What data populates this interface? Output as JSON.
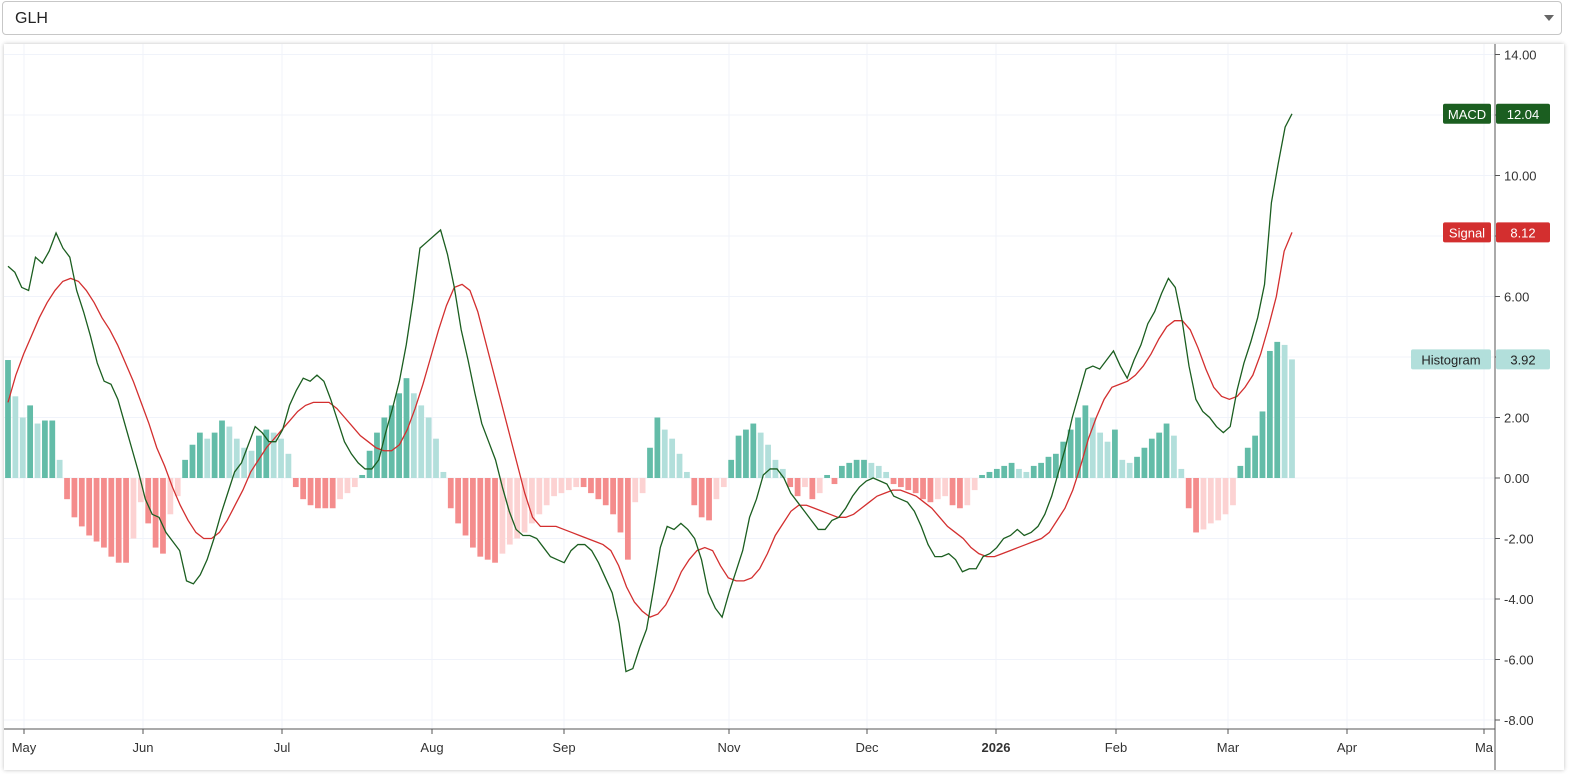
{
  "symbol_select": {
    "value": "GLH",
    "icon": "chevron-down-icon"
  },
  "chart_data": {
    "type": "line",
    "title": "",
    "xlabel": "",
    "ylabel": "",
    "ylim": [
      -8.5,
      14.3
    ],
    "grid": true,
    "legend": "right-axis-labels",
    "x_ticks": [
      "May",
      "Jun",
      "Jul",
      "Aug",
      "Sep",
      "Nov",
      "Dec",
      "2026",
      "Feb",
      "Mar",
      "Apr",
      "Ma"
    ],
    "y_ticks": [
      "14.00",
      "12.00",
      "10.00",
      "8.00",
      "6.00",
      "4.00",
      "2.00",
      "0.00",
      "-2.00",
      "-4.00",
      "-6.00",
      "-8.00"
    ],
    "colors": {
      "macd": "#1b5e20",
      "signal": "#d32f2f",
      "hist_pos_strong": "#63bca8",
      "hist_pos_weak": "#b2dfdb",
      "hist_neg_strong": "#f48c8c",
      "hist_neg_weak": "#fcd2d2",
      "grid": "#f0f3fa",
      "axis_text": "#333333"
    },
    "series": [
      {
        "name": "MACD",
        "last_value": "12.04",
        "values": [
          7,
          6.8,
          6.3,
          6.2,
          7.3,
          7.1,
          7.5,
          8.1,
          7.6,
          7.3,
          6.2,
          5.5,
          4.7,
          3.8,
          3.2,
          3.1,
          2.6,
          1.8,
          1.0,
          0.2,
          -0.7,
          -1.2,
          -1.3,
          -1.8,
          -2.1,
          -2.4,
          -3.4,
          -3.5,
          -3.2,
          -2.7,
          -2.0,
          -1.2,
          -0.5,
          0.2,
          0.5,
          1.1,
          1.7,
          1.5,
          1.2,
          1.2,
          1.6,
          2.4,
          2.9,
          3.3,
          3.2,
          3.4,
          3.2,
          2.6,
          1.9,
          1.2,
          0.8,
          0.5,
          0.3,
          0.3,
          0.6,
          1.5,
          2.3,
          3.2,
          4.4,
          5.9,
          7.6,
          7.8,
          8.0,
          8.2,
          7.4,
          6.3,
          4.9,
          3.9,
          2.8,
          1.8,
          1.2,
          0.6,
          -0.3,
          -1.1,
          -1.7,
          -1.9,
          -1.9,
          -2.0,
          -2.3,
          -2.6,
          -2.7,
          -2.8,
          -2.4,
          -2.2,
          -2.2,
          -2.4,
          -2.8,
          -3.3,
          -3.8,
          -4.8,
          -6.4,
          -6.3,
          -5.6,
          -5.0,
          -3.7,
          -2.3,
          -1.6,
          -1.7,
          -1.5,
          -1.7,
          -2.0,
          -2.7,
          -3.8,
          -4.3,
          -4.6,
          -3.8,
          -3.1,
          -2.4,
          -1.3,
          -0.7,
          0.1,
          0.3,
          0.3,
          0.0,
          -0.5,
          -0.8,
          -1.1,
          -1.4,
          -1.7,
          -1.7,
          -1.4,
          -1.3,
          -1.0,
          -0.6,
          -0.3,
          -0.1,
          0.0,
          -0.1,
          -0.2,
          -0.6,
          -0.7,
          -0.8,
          -1.1,
          -1.6,
          -2.2,
          -2.6,
          -2.6,
          -2.5,
          -2.7,
          -3.1,
          -3.0,
          -3.0,
          -2.6,
          -2.5,
          -2.3,
          -2.0,
          -1.9,
          -1.7,
          -1.9,
          -1.8,
          -1.6,
          -1.2,
          -0.6,
          0.2,
          1.0,
          2.0,
          2.8,
          3.6,
          3.7,
          3.6,
          3.9,
          4.2,
          3.7,
          3.3,
          3.9,
          4.4,
          5.1,
          5.5,
          6.1,
          6.6,
          6.3,
          5.2,
          3.7,
          2.6,
          2.2,
          2.0,
          1.7,
          1.5,
          1.7,
          2.9,
          3.8,
          4.5,
          5.3,
          6.4,
          9.1,
          10.4,
          11.6,
          12.04
        ]
      },
      {
        "name": "Signal",
        "last_value": "8.12",
        "values": [
          2.5,
          3.4,
          4.1,
          4.7,
          5.3,
          5.8,
          6.2,
          6.5,
          6.6,
          6.5,
          6.2,
          5.8,
          5.3,
          4.9,
          4.4,
          3.8,
          3.2,
          2.5,
          1.8,
          1.0,
          0.4,
          -0.3,
          -0.9,
          -1.4,
          -1.8,
          -2.0,
          -2.0,
          -1.8,
          -1.4,
          -0.9,
          -0.4,
          0.2,
          0.6,
          1.0,
          1.3,
          1.6,
          1.9,
          2.2,
          2.4,
          2.5,
          2.5,
          2.5,
          2.3,
          2.0,
          1.7,
          1.4,
          1.2,
          1.0,
          0.9,
          0.9,
          1.1,
          1.6,
          2.3,
          3.1,
          4.0,
          4.9,
          5.7,
          6.3,
          6.4,
          6.2,
          5.5,
          4.5,
          3.5,
          2.5,
          1.5,
          0.5,
          -0.5,
          -1.3,
          -1.6,
          -1.6,
          -1.6,
          -1.7,
          -1.8,
          -1.9,
          -2.0,
          -2.1,
          -2.2,
          -2.4,
          -2.9,
          -3.6,
          -4.1,
          -4.4,
          -4.6,
          -4.5,
          -4.2,
          -3.7,
          -3.1,
          -2.7,
          -2.4,
          -2.3,
          -2.4,
          -2.9,
          -3.3,
          -3.4,
          -3.4,
          -3.3,
          -3.0,
          -2.5,
          -1.9,
          -1.5,
          -1.1,
          -0.9,
          -0.9,
          -1.0,
          -1.1,
          -1.2,
          -1.3,
          -1.3,
          -1.2,
          -1.0,
          -0.8,
          -0.6,
          -0.5,
          -0.4,
          -0.4,
          -0.5,
          -0.6,
          -0.8,
          -1.0,
          -1.3,
          -1.6,
          -1.8,
          -2.0,
          -2.3,
          -2.5,
          -2.6,
          -2.6,
          -2.5,
          -2.4,
          -2.3,
          -2.2,
          -2.1,
          -2.0,
          -1.8,
          -1.4,
          -1.0,
          -0.4,
          0.4,
          1.3,
          2.0,
          2.6,
          3.0,
          3.1,
          3.2,
          3.4,
          3.7,
          4.1,
          4.6,
          5.0,
          5.2,
          5.2,
          4.9,
          4.3,
          3.6,
          3.0,
          2.7,
          2.6,
          2.7,
          3.0,
          3.4,
          4.1,
          5.0,
          6.0,
          7.5,
          8.12
        ]
      },
      {
        "name": "Histogram",
        "last_value": "3.92",
        "values": [
          3.9,
          2.7,
          2.0,
          2.4,
          1.8,
          1.9,
          1.9,
          0.6,
          -0.7,
          -1.3,
          -1.6,
          -1.9,
          -2.1,
          -2.3,
          -2.6,
          -2.8,
          -2.8,
          -2.0,
          -0.8,
          -1.5,
          -2.3,
          -2.5,
          -1.2,
          -0.6,
          0.6,
          1.1,
          1.5,
          1.3,
          1.5,
          1.9,
          1.7,
          1.3,
          1.0,
          0.9,
          1.4,
          1.6,
          1.5,
          1.3,
          0.8,
          -0.3,
          -0.7,
          -0.9,
          -1.0,
          -1.0,
          -1.0,
          -0.7,
          -0.5,
          -0.3,
          0.1,
          0.9,
          1.5,
          2.0,
          2.4,
          2.8,
          3.3,
          2.8,
          2.4,
          2.0,
          1.3,
          0.2,
          -1.0,
          -1.5,
          -1.9,
          -2.3,
          -2.6,
          -2.7,
          -2.8,
          -2.5,
          -2.2,
          -2.0,
          -1.8,
          -1.5,
          -1.2,
          -0.9,
          -0.6,
          -0.5,
          -0.4,
          -0.3,
          -0.3,
          -0.5,
          -0.7,
          -0.9,
          -1.2,
          -1.8,
          -2.7,
          -0.8,
          -0.5,
          1.0,
          2.0,
          1.6,
          1.3,
          0.8,
          0.2,
          -0.9,
          -1.3,
          -1.4,
          -0.7,
          -0.3,
          0.6,
          1.4,
          1.6,
          1.8,
          1.5,
          1.1,
          0.6,
          0.3,
          -0.3,
          -0.6,
          -0.3,
          -0.7,
          -0.5,
          0.1,
          -0.2,
          0.4,
          0.5,
          0.6,
          0.6,
          0.5,
          0.4,
          0.2,
          -0.2,
          -0.3,
          -0.4,
          -0.5,
          -0.7,
          -0.8,
          -0.7,
          -0.6,
          -0.9,
          -1.0,
          -0.9,
          -0.4,
          0.1,
          0.2,
          0.3,
          0.4,
          0.5,
          0.3,
          0.2,
          0.4,
          0.5,
          0.7,
          0.8,
          1.2,
          1.6,
          2.0,
          2.4,
          2.0,
          1.5,
          1.2,
          1.6,
          0.6,
          0.5,
          0.7,
          1.0,
          1.3,
          1.5,
          1.8,
          1.4,
          0.3,
          -1.0,
          -1.8,
          -1.7,
          -1.5,
          -1.4,
          -1.2,
          -0.9,
          0.4,
          1.0,
          1.4,
          2.2,
          4.2,
          4.5,
          4.4,
          3.92
        ]
      }
    ]
  }
}
